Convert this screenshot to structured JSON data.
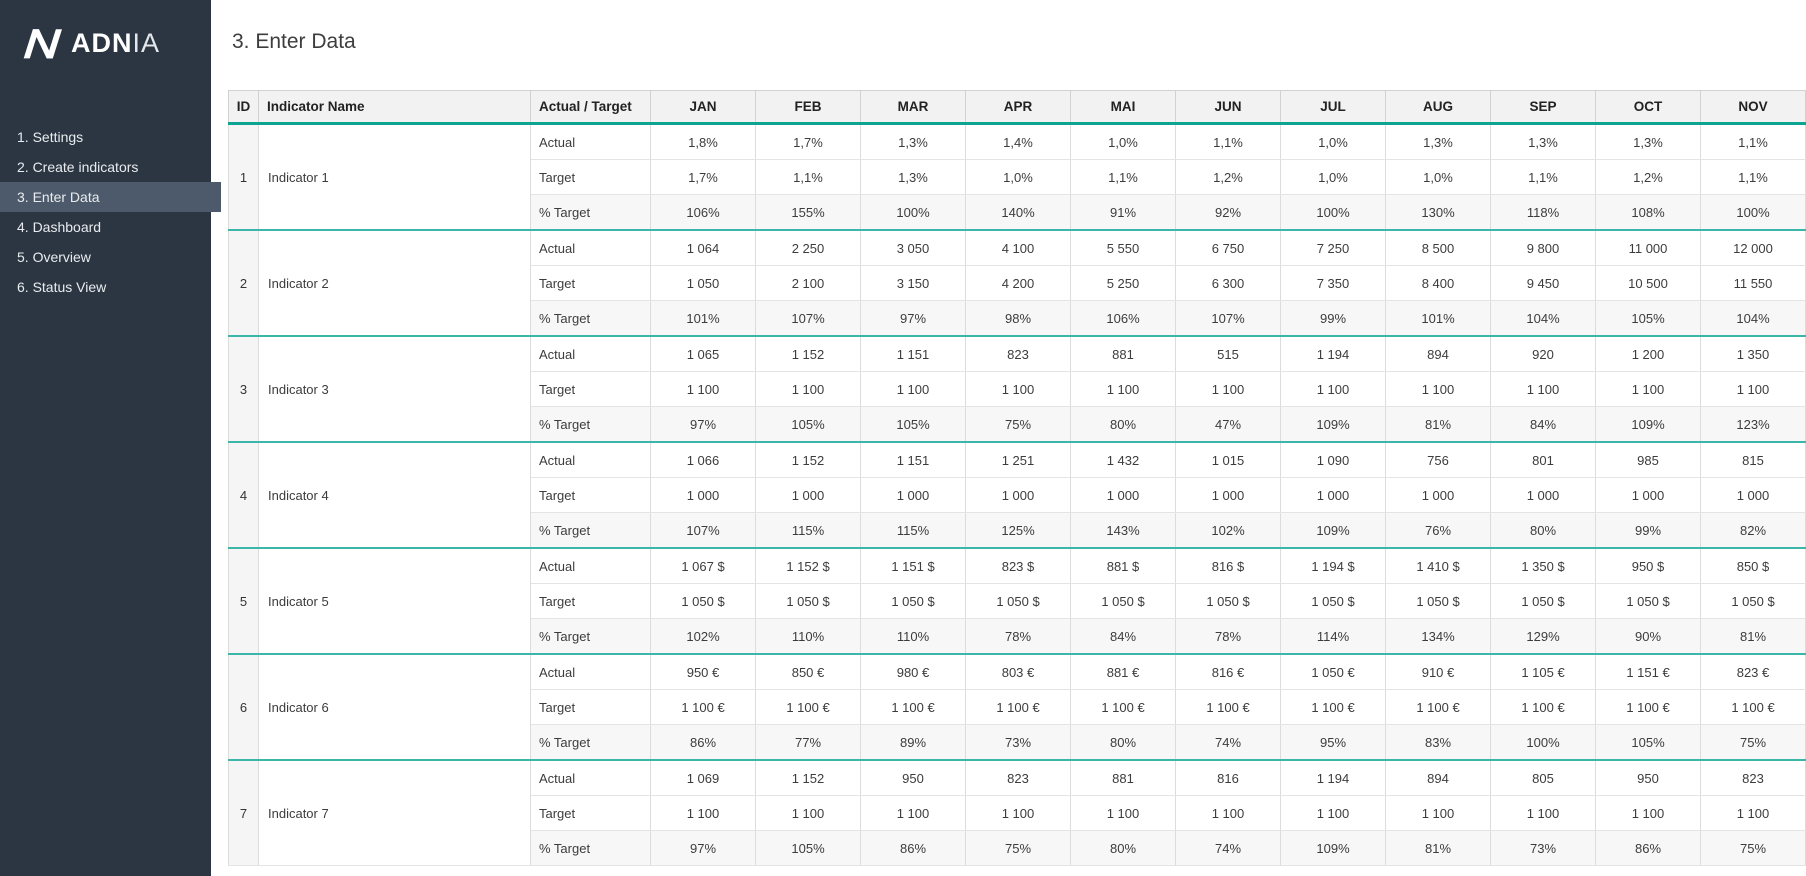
{
  "sidebar": {
    "logo": {
      "bold": "ADN",
      "light": "IA",
      "icon": "adnia-mark-icon"
    },
    "items": [
      {
        "label": "1. Settings",
        "active": false
      },
      {
        "label": "2. Create indicators",
        "active": false
      },
      {
        "label": "3. Enter Data",
        "active": true
      },
      {
        "label": "4. Dashboard",
        "active": false
      },
      {
        "label": "5. Overview",
        "active": false
      },
      {
        "label": "6. Status View",
        "active": false
      }
    ]
  },
  "page": {
    "title": "3. Enter Data"
  },
  "table": {
    "headers": {
      "id": "ID",
      "indicator_name": "Indicator Name",
      "actual_target": "Actual / Target"
    },
    "months": [
      "JAN",
      "FEB",
      "MAR",
      "APR",
      "MAI",
      "JUN",
      "JUL",
      "AUG",
      "SEP",
      "OCT",
      "NOV"
    ],
    "row_labels": [
      "Actual",
      "Target",
      "% Target"
    ],
    "indicators": [
      {
        "id": "1",
        "name": "Indicator 1",
        "actual": [
          "1,8%",
          "1,7%",
          "1,3%",
          "1,4%",
          "1,0%",
          "1,1%",
          "1,0%",
          "1,3%",
          "1,3%",
          "1,3%",
          "1,1%"
        ],
        "target": [
          "1,7%",
          "1,1%",
          "1,3%",
          "1,0%",
          "1,1%",
          "1,2%",
          "1,0%",
          "1,0%",
          "1,1%",
          "1,2%",
          "1,1%"
        ],
        "pct_target": [
          "106%",
          "155%",
          "100%",
          "140%",
          "91%",
          "92%",
          "100%",
          "130%",
          "118%",
          "108%",
          "100%"
        ]
      },
      {
        "id": "2",
        "name": "Indicator 2",
        "actual": [
          "1 064",
          "2 250",
          "3 050",
          "4 100",
          "5 550",
          "6 750",
          "7 250",
          "8 500",
          "9 800",
          "11 000",
          "12 000"
        ],
        "target": [
          "1 050",
          "2 100",
          "3 150",
          "4 200",
          "5 250",
          "6 300",
          "7 350",
          "8 400",
          "9 450",
          "10 500",
          "11 550"
        ],
        "pct_target": [
          "101%",
          "107%",
          "97%",
          "98%",
          "106%",
          "107%",
          "99%",
          "101%",
          "104%",
          "105%",
          "104%"
        ]
      },
      {
        "id": "3",
        "name": "Indicator 3",
        "actual": [
          "1 065",
          "1 152",
          "1 151",
          "823",
          "881",
          "515",
          "1 194",
          "894",
          "920",
          "1 200",
          "1 350"
        ],
        "target": [
          "1 100",
          "1 100",
          "1 100",
          "1 100",
          "1 100",
          "1 100",
          "1 100",
          "1 100",
          "1 100",
          "1 100",
          "1 100"
        ],
        "pct_target": [
          "97%",
          "105%",
          "105%",
          "75%",
          "80%",
          "47%",
          "109%",
          "81%",
          "84%",
          "109%",
          "123%"
        ]
      },
      {
        "id": "4",
        "name": "Indicator 4",
        "actual": [
          "1 066",
          "1 152",
          "1 151",
          "1 251",
          "1 432",
          "1 015",
          "1 090",
          "756",
          "801",
          "985",
          "815"
        ],
        "target": [
          "1 000",
          "1 000",
          "1 000",
          "1 000",
          "1 000",
          "1 000",
          "1 000",
          "1 000",
          "1 000",
          "1 000",
          "1 000"
        ],
        "pct_target": [
          "107%",
          "115%",
          "115%",
          "125%",
          "143%",
          "102%",
          "109%",
          "76%",
          "80%",
          "99%",
          "82%"
        ]
      },
      {
        "id": "5",
        "name": "Indicator 5",
        "actual": [
          "1 067 $",
          "1 152 $",
          "1 151 $",
          "823 $",
          "881 $",
          "816 $",
          "1 194 $",
          "1 410 $",
          "1 350 $",
          "950 $",
          "850 $"
        ],
        "target": [
          "1 050 $",
          "1 050 $",
          "1 050 $",
          "1 050 $",
          "1 050 $",
          "1 050 $",
          "1 050 $",
          "1 050 $",
          "1 050 $",
          "1 050 $",
          "1 050 $"
        ],
        "pct_target": [
          "102%",
          "110%",
          "110%",
          "78%",
          "84%",
          "78%",
          "114%",
          "134%",
          "129%",
          "90%",
          "81%"
        ]
      },
      {
        "id": "6",
        "name": "Indicator 6",
        "actual": [
          "950 €",
          "850 €",
          "980 €",
          "803 €",
          "881 €",
          "816 €",
          "1 050 €",
          "910 €",
          "1 105 €",
          "1 151 €",
          "823 €"
        ],
        "target": [
          "1 100 €",
          "1 100 €",
          "1 100 €",
          "1 100 €",
          "1 100 €",
          "1 100 €",
          "1 100 €",
          "1 100 €",
          "1 100 €",
          "1 100 €",
          "1 100 €"
        ],
        "pct_target": [
          "86%",
          "77%",
          "89%",
          "73%",
          "80%",
          "74%",
          "95%",
          "83%",
          "100%",
          "105%",
          "75%"
        ]
      },
      {
        "id": "7",
        "name": "Indicator 7",
        "actual": [
          "1 069",
          "1 152",
          "950",
          "823",
          "881",
          "816",
          "1 194",
          "894",
          "805",
          "950",
          "823"
        ],
        "target": [
          "1 100",
          "1 100",
          "1 100",
          "1 100",
          "1 100",
          "1 100",
          "1 100",
          "1 100",
          "1 100",
          "1 100",
          "1 100"
        ],
        "pct_target": [
          "97%",
          "105%",
          "86%",
          "75%",
          "80%",
          "74%",
          "109%",
          "81%",
          "73%",
          "86%",
          "75%"
        ]
      }
    ]
  },
  "colors": {
    "sidebar_bg": "#2b3642",
    "sidebar_active_bg": "#4c5a6b",
    "header_bg": "#f2f2f2",
    "header_underline_teal": "#0da492",
    "group_separator_teal": "#3bb6a9",
    "pct_row_bg": "#f7f7f7"
  }
}
